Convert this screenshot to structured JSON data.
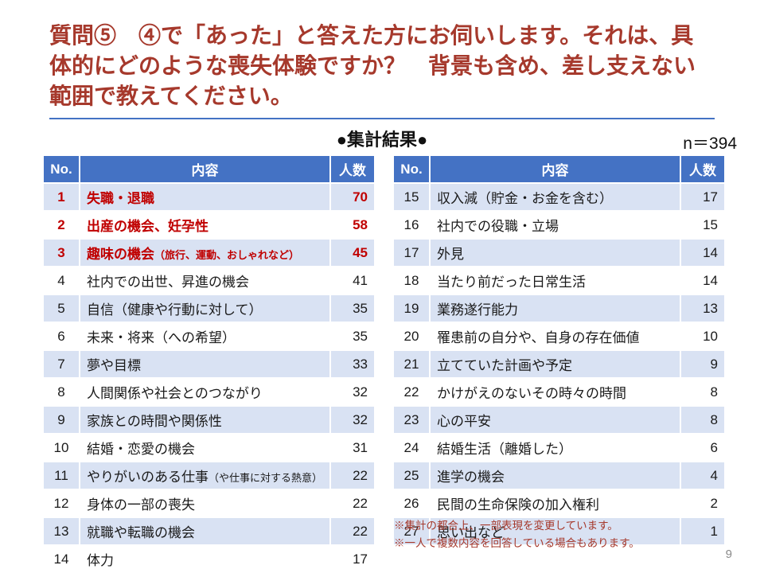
{
  "slide": {
    "title": "質問⑤　④で「あった」と答えた方にお伺いします。それは、具体的にどのような喪失体験ですか？　背景も含め、差し支えない範囲で教えてください。",
    "section_heading": "●集計結果●",
    "sample_size": "n＝394",
    "notes": [
      "※集計の都合上、一部表現を変更しています。",
      "※一人で複数内容を回答している場合もあります。"
    ],
    "page_number": "9"
  },
  "colors": {
    "title_red": "#A6392C",
    "emphasis_red": "#C00000",
    "header_blue": "#4472C4",
    "band_blue": "#D9E2F3",
    "rule_blue": "#4472C4",
    "page_number_gray": "#8A8A8A"
  },
  "table_headers": {
    "no": "No.",
    "content": "内容",
    "count": "人数"
  },
  "tables": {
    "left": {
      "rows": [
        {
          "no": 1,
          "content": "失職・退職",
          "sub": "",
          "count": 70,
          "emphasis": true
        },
        {
          "no": 2,
          "content": "出産の機会、妊孕性",
          "sub": "",
          "count": 58,
          "emphasis": true
        },
        {
          "no": 3,
          "content": "趣味の機会",
          "sub": "（旅行、運動、おしゃれなど）",
          "count": 45,
          "emphasis": true
        },
        {
          "no": 4,
          "content": "社内での出世、昇進の機会",
          "sub": "",
          "count": 41,
          "emphasis": false
        },
        {
          "no": 5,
          "content": "自信（健康や行動に対して）",
          "sub": "",
          "count": 35,
          "emphasis": false
        },
        {
          "no": 6,
          "content": "未来・将来（への希望）",
          "sub": "",
          "count": 35,
          "emphasis": false
        },
        {
          "no": 7,
          "content": "夢や目標",
          "sub": "",
          "count": 33,
          "emphasis": false
        },
        {
          "no": 8,
          "content": "人間関係や社会とのつながり",
          "sub": "",
          "count": 32,
          "emphasis": false
        },
        {
          "no": 9,
          "content": "家族との時間や関係性",
          "sub": "",
          "count": 32,
          "emphasis": false
        },
        {
          "no": 10,
          "content": "結婚・恋愛の機会",
          "sub": "",
          "count": 31,
          "emphasis": false
        },
        {
          "no": 11,
          "content": "やりがいのある仕事",
          "sub": "（や仕事に対する熱意）",
          "count": 22,
          "emphasis": false
        },
        {
          "no": 12,
          "content": "身体の一部の喪失",
          "sub": "",
          "count": 22,
          "emphasis": false
        },
        {
          "no": 13,
          "content": "就職や転職の機会",
          "sub": "",
          "count": 22,
          "emphasis": false
        },
        {
          "no": 14,
          "content": "体力",
          "sub": "",
          "count": 17,
          "emphasis": false
        }
      ]
    },
    "right": {
      "rows": [
        {
          "no": 15,
          "content": "収入減（貯金・お金を含む）",
          "sub": "",
          "count": 17,
          "emphasis": false
        },
        {
          "no": 16,
          "content": "社内での役職・立場",
          "sub": "",
          "count": 15,
          "emphasis": false
        },
        {
          "no": 17,
          "content": "外見",
          "sub": "",
          "count": 14,
          "emphasis": false
        },
        {
          "no": 18,
          "content": "当たり前だった日常生活",
          "sub": "",
          "count": 14,
          "emphasis": false
        },
        {
          "no": 19,
          "content": "業務遂行能力",
          "sub": "",
          "count": 13,
          "emphasis": false
        },
        {
          "no": 20,
          "content": "罹患前の自分や、自身の存在価値",
          "sub": "",
          "count": 10,
          "emphasis": false
        },
        {
          "no": 21,
          "content": "立てていた計画や予定",
          "sub": "",
          "count": 9,
          "emphasis": false
        },
        {
          "no": 22,
          "content": "かけがえのないその時々の時間",
          "sub": "",
          "count": 8,
          "emphasis": false
        },
        {
          "no": 23,
          "content": "心の平安",
          "sub": "",
          "count": 8,
          "emphasis": false
        },
        {
          "no": 24,
          "content": "結婚生活（離婚した）",
          "sub": "",
          "count": 6,
          "emphasis": false
        },
        {
          "no": 25,
          "content": "進学の機会",
          "sub": "",
          "count": 4,
          "emphasis": false
        },
        {
          "no": 26,
          "content": "民間の生命保険の加入権利",
          "sub": "",
          "count": 2,
          "emphasis": false
        },
        {
          "no": 27,
          "content": "思い出など",
          "sub": "",
          "count": 1,
          "emphasis": false
        }
      ]
    }
  }
}
